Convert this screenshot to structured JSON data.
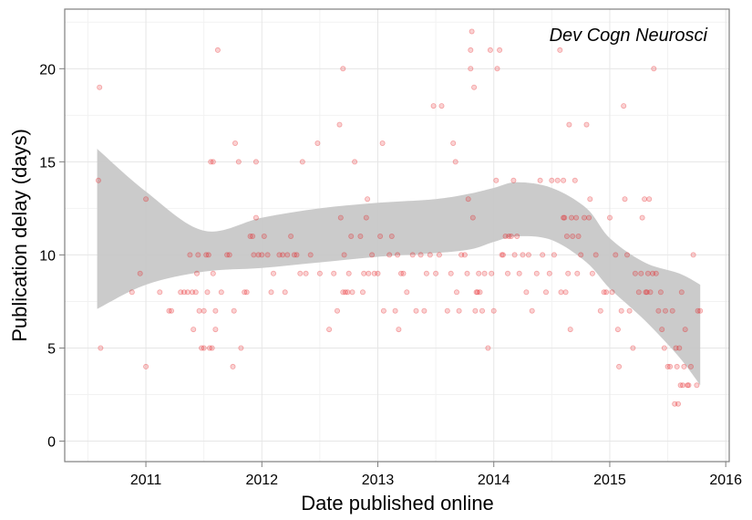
{
  "chart_data": {
    "type": "scatter",
    "title": "",
    "annotation": "Dev Cogn Neurosci",
    "xlabel": "Date published online",
    "ylabel": "Publication delay (days)",
    "xlim": [
      2010.3,
      2016.03
    ],
    "ylim": [
      -1.1,
      23.2
    ],
    "x_ticks": [
      2011,
      2012,
      2013,
      2014,
      2015,
      2016
    ],
    "x_tick_labels": [
      "2011",
      "2012",
      "2013",
      "2014",
      "2015",
      "2016"
    ],
    "y_ticks": [
      0,
      5,
      10,
      15,
      20
    ],
    "y_tick_labels": [
      "0",
      "5",
      "10",
      "15",
      "20"
    ],
    "grid": true,
    "point_color": "#e41a1c",
    "band_color": "#c8c8c8",
    "smooth": {
      "name": "loess",
      "x": [
        2010.58,
        2011.0,
        2011.5,
        2012.0,
        2012.5,
        2013.0,
        2013.5,
        2013.8,
        2014.0,
        2014.2,
        2014.5,
        2014.8,
        2015.0,
        2015.3,
        2015.6,
        2015.78
      ],
      "lower": [
        7.1,
        8.4,
        9.1,
        9.3,
        9.6,
        9.9,
        10.1,
        10.3,
        10.7,
        11.0,
        10.8,
        9.6,
        8.2,
        6.5,
        4.5,
        3.0
      ],
      "upper": [
        15.7,
        13.4,
        11.3,
        12.0,
        12.5,
        12.8,
        13.0,
        13.3,
        13.6,
        13.9,
        13.6,
        12.5,
        10.9,
        9.6,
        9.0,
        8.4
      ]
    },
    "series": [
      {
        "points": [
          [
            2010.59,
            14
          ],
          [
            2010.6,
            19
          ],
          [
            2010.61,
            5
          ],
          [
            2010.88,
            8
          ],
          [
            2010.95,
            9
          ],
          [
            2011.0,
            13
          ],
          [
            2011.0,
            4
          ],
          [
            2011.12,
            8
          ],
          [
            2011.2,
            7
          ],
          [
            2011.22,
            7
          ],
          [
            2011.3,
            8
          ],
          [
            2011.33,
            8
          ],
          [
            2011.36,
            8
          ],
          [
            2011.38,
            10
          ],
          [
            2011.4,
            8
          ],
          [
            2011.41,
            6
          ],
          [
            2011.43,
            8
          ],
          [
            2011.44,
            9
          ],
          [
            2011.45,
            10
          ],
          [
            2011.46,
            7
          ],
          [
            2011.48,
            5
          ],
          [
            2011.5,
            5
          ],
          [
            2011.5,
            7
          ],
          [
            2011.52,
            10
          ],
          [
            2011.53,
            8
          ],
          [
            2011.54,
            10
          ],
          [
            2011.55,
            5
          ],
          [
            2011.56,
            15
          ],
          [
            2011.57,
            5
          ],
          [
            2011.58,
            15
          ],
          [
            2011.58,
            9
          ],
          [
            2011.6,
            6
          ],
          [
            2011.6,
            7
          ],
          [
            2011.62,
            21
          ],
          [
            2011.65,
            8
          ],
          [
            2011.7,
            10
          ],
          [
            2011.72,
            10
          ],
          [
            2011.75,
            4
          ],
          [
            2011.76,
            7
          ],
          [
            2011.77,
            16
          ],
          [
            2011.8,
            15
          ],
          [
            2011.82,
            5
          ],
          [
            2011.85,
            8
          ],
          [
            2011.87,
            8
          ],
          [
            2011.9,
            11
          ],
          [
            2011.92,
            11
          ],
          [
            2011.93,
            10
          ],
          [
            2011.95,
            15
          ],
          [
            2011.95,
            12
          ],
          [
            2011.97,
            10
          ],
          [
            2012.0,
            10
          ],
          [
            2012.02,
            11
          ],
          [
            2012.05,
            10
          ],
          [
            2012.08,
            8
          ],
          [
            2012.1,
            9
          ],
          [
            2012.15,
            10
          ],
          [
            2012.18,
            10
          ],
          [
            2012.2,
            8
          ],
          [
            2012.22,
            10
          ],
          [
            2012.25,
            11
          ],
          [
            2012.28,
            10
          ],
          [
            2012.3,
            10
          ],
          [
            2012.33,
            9
          ],
          [
            2012.35,
            15
          ],
          [
            2012.38,
            9
          ],
          [
            2012.42,
            10
          ],
          [
            2012.48,
            16
          ],
          [
            2012.5,
            9
          ],
          [
            2012.58,
            6
          ],
          [
            2012.62,
            9
          ],
          [
            2012.65,
            7
          ],
          [
            2012.67,
            17
          ],
          [
            2012.68,
            12
          ],
          [
            2012.7,
            20
          ],
          [
            2012.7,
            8
          ],
          [
            2012.71,
            10
          ],
          [
            2012.72,
            8
          ],
          [
            2012.74,
            8
          ],
          [
            2012.75,
            9
          ],
          [
            2012.77,
            11
          ],
          [
            2012.78,
            8
          ],
          [
            2012.8,
            15
          ],
          [
            2012.85,
            11
          ],
          [
            2012.87,
            8
          ],
          [
            2012.88,
            9
          ],
          [
            2012.9,
            12
          ],
          [
            2012.91,
            13
          ],
          [
            2012.92,
            9
          ],
          [
            2012.95,
            10
          ],
          [
            2012.97,
            9
          ],
          [
            2013.0,
            9
          ],
          [
            2013.02,
            11
          ],
          [
            2013.04,
            16
          ],
          [
            2013.05,
            7
          ],
          [
            2013.1,
            10
          ],
          [
            2013.12,
            11
          ],
          [
            2013.15,
            7
          ],
          [
            2013.17,
            10
          ],
          [
            2013.18,
            6
          ],
          [
            2013.2,
            9
          ],
          [
            2013.22,
            9
          ],
          [
            2013.25,
            8
          ],
          [
            2013.3,
            10
          ],
          [
            2013.33,
            7
          ],
          [
            2013.37,
            10
          ],
          [
            2013.4,
            7
          ],
          [
            2013.42,
            9
          ],
          [
            2013.45,
            10
          ],
          [
            2013.48,
            18
          ],
          [
            2013.5,
            9
          ],
          [
            2013.53,
            10
          ],
          [
            2013.55,
            18
          ],
          [
            2013.6,
            7
          ],
          [
            2013.63,
            9
          ],
          [
            2013.65,
            16
          ],
          [
            2013.67,
            15
          ],
          [
            2013.68,
            8
          ],
          [
            2013.7,
            7
          ],
          [
            2013.72,
            10
          ],
          [
            2013.75,
            10
          ],
          [
            2013.77,
            9
          ],
          [
            2013.78,
            13
          ],
          [
            2013.8,
            21
          ],
          [
            2013.8,
            20
          ],
          [
            2013.81,
            22
          ],
          [
            2013.82,
            12
          ],
          [
            2013.83,
            19
          ],
          [
            2013.84,
            7
          ],
          [
            2013.85,
            8
          ],
          [
            2013.86,
            8
          ],
          [
            2013.87,
            9
          ],
          [
            2013.88,
            8
          ],
          [
            2013.9,
            7
          ],
          [
            2013.92,
            9
          ],
          [
            2013.95,
            5
          ],
          [
            2013.97,
            21
          ],
          [
            2013.98,
            9
          ],
          [
            2014.0,
            7
          ],
          [
            2014.02,
            14
          ],
          [
            2014.03,
            20
          ],
          [
            2014.05,
            21
          ],
          [
            2014.07,
            10
          ],
          [
            2014.08,
            10
          ],
          [
            2014.1,
            11
          ],
          [
            2014.12,
            9
          ],
          [
            2014.13,
            11
          ],
          [
            2014.15,
            11
          ],
          [
            2014.17,
            14
          ],
          [
            2014.18,
            10
          ],
          [
            2014.2,
            11
          ],
          [
            2014.22,
            9
          ],
          [
            2014.25,
            10
          ],
          [
            2014.28,
            8
          ],
          [
            2014.3,
            10
          ],
          [
            2014.33,
            7
          ],
          [
            2014.37,
            9
          ],
          [
            2014.4,
            14
          ],
          [
            2014.42,
            10
          ],
          [
            2014.45,
            8
          ],
          [
            2014.48,
            9
          ],
          [
            2014.5,
            14
          ],
          [
            2014.52,
            10
          ],
          [
            2014.55,
            14
          ],
          [
            2014.57,
            21
          ],
          [
            2014.58,
            8
          ],
          [
            2014.6,
            14
          ],
          [
            2014.6,
            12
          ],
          [
            2014.61,
            12
          ],
          [
            2014.62,
            8
          ],
          [
            2014.63,
            11
          ],
          [
            2014.64,
            9
          ],
          [
            2014.65,
            17
          ],
          [
            2014.66,
            6
          ],
          [
            2014.67,
            12
          ],
          [
            2014.68,
            11
          ],
          [
            2014.7,
            14
          ],
          [
            2014.71,
            12
          ],
          [
            2014.72,
            9
          ],
          [
            2014.73,
            11
          ],
          [
            2014.75,
            10
          ],
          [
            2014.78,
            12
          ],
          [
            2014.8,
            17
          ],
          [
            2014.82,
            12
          ],
          [
            2014.83,
            13
          ],
          [
            2014.85,
            9
          ],
          [
            2014.88,
            10
          ],
          [
            2014.92,
            7
          ],
          [
            2014.95,
            8
          ],
          [
            2014.97,
            8
          ],
          [
            2015.0,
            12
          ],
          [
            2015.02,
            8
          ],
          [
            2015.05,
            10
          ],
          [
            2015.07,
            6
          ],
          [
            2015.08,
            4
          ],
          [
            2015.1,
            7
          ],
          [
            2015.12,
            18
          ],
          [
            2015.13,
            13
          ],
          [
            2015.15,
            10
          ],
          [
            2015.17,
            7
          ],
          [
            2015.2,
            5
          ],
          [
            2015.22,
            9
          ],
          [
            2015.25,
            8
          ],
          [
            2015.27,
            9
          ],
          [
            2015.28,
            12
          ],
          [
            2015.3,
            13
          ],
          [
            2015.31,
            8
          ],
          [
            2015.32,
            8
          ],
          [
            2015.33,
            9
          ],
          [
            2015.34,
            13
          ],
          [
            2015.35,
            8
          ],
          [
            2015.37,
            9
          ],
          [
            2015.38,
            20
          ],
          [
            2015.4,
            9
          ],
          [
            2015.42,
            7
          ],
          [
            2015.44,
            8
          ],
          [
            2015.45,
            6
          ],
          [
            2015.47,
            5
          ],
          [
            2015.48,
            7
          ],
          [
            2015.5,
            4
          ],
          [
            2015.52,
            4
          ],
          [
            2015.54,
            7
          ],
          [
            2015.56,
            2
          ],
          [
            2015.57,
            5
          ],
          [
            2015.58,
            4
          ],
          [
            2015.59,
            2
          ],
          [
            2015.6,
            5
          ],
          [
            2015.61,
            3
          ],
          [
            2015.62,
            8
          ],
          [
            2015.63,
            3
          ],
          [
            2015.64,
            4
          ],
          [
            2015.65,
            6
          ],
          [
            2015.67,
            3
          ],
          [
            2015.68,
            3
          ],
          [
            2015.7,
            4
          ],
          [
            2015.72,
            10
          ],
          [
            2015.75,
            3
          ],
          [
            2015.76,
            7
          ],
          [
            2015.78,
            7
          ]
        ]
      }
    ]
  }
}
